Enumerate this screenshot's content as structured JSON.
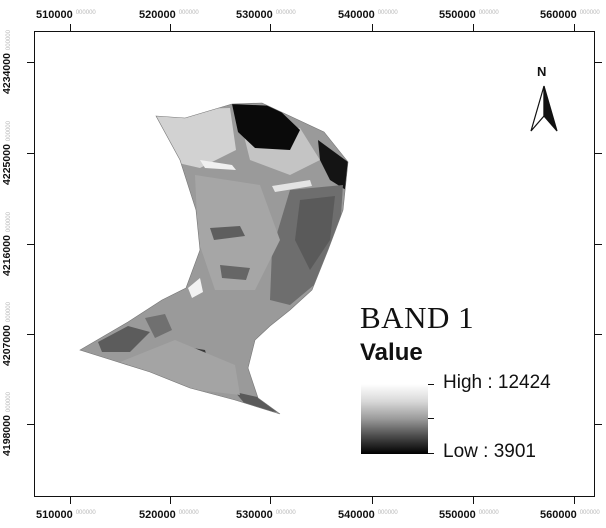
{
  "map": {
    "x_ticks": [
      "510000",
      "520000",
      "530000",
      "540000",
      "550000",
      "560000"
    ],
    "y_ticks": [
      "4234000",
      "4225000",
      "4216000",
      "4207000",
      "4198000"
    ],
    "tick_suffix": "000000",
    "north_label": "N"
  },
  "legend": {
    "title": "BAND 1",
    "subtitle": "Value",
    "high_label": "High : 12424",
    "low_label": "Low : 3901",
    "ramp_colors": [
      "#ffffff",
      "#000000"
    ]
  },
  "raster": {
    "colors": {
      "base": "#9a9a9a",
      "light": "#d6d6d6",
      "dark": "#2a2a2a",
      "black": "#0a0a0a",
      "mid": "#7a7a7a"
    }
  }
}
